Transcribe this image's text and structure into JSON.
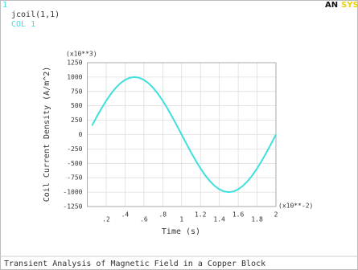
{
  "window_number": "1",
  "logo": [
    "AN",
    "SYS"
  ],
  "chart_data": {
    "type": "line",
    "plot_label": "jcoil(1,1)",
    "title": "Transient Analysis of Magnetic Field in a Copper Block",
    "x_label": "Time (s)",
    "y_label": "Coil Current Density (A/m^2)",
    "x_multiplier": "(x10**-2)",
    "y_multiplier": "(x10**3)",
    "xlim": [
      0,
      2
    ],
    "ylim": [
      -1250,
      1250
    ],
    "xticks": [
      {
        "value": 0.2,
        "label": ".2"
      },
      {
        "value": 0.4,
        "label": ".4"
      },
      {
        "value": 0.6,
        "label": ".6"
      },
      {
        "value": 0.8,
        "label": ".8"
      },
      1,
      1.2,
      1.4,
      1.6,
      1.8,
      2
    ],
    "yticks": [
      -1250,
      -1000,
      -750,
      -500,
      -250,
      0,
      250,
      500,
      750,
      1000,
      1250
    ],
    "grid": true,
    "x": [
      0.05,
      0.1,
      0.15,
      0.2,
      0.25,
      0.3,
      0.35,
      0.4,
      0.45,
      0.5,
      0.55,
      0.6,
      0.65,
      0.7,
      0.75,
      0.8,
      0.85,
      0.9,
      0.95,
      1.0,
      1.05,
      1.1,
      1.15,
      1.2,
      1.25,
      1.3,
      1.35,
      1.4,
      1.45,
      1.5,
      1.55,
      1.6,
      1.65,
      1.7,
      1.75,
      1.8,
      1.85,
      1.9,
      1.95,
      2.0
    ],
    "series": [
      {
        "name": "COL 1",
        "color": "#3fe0dc",
        "values": [
          156,
          309,
          454,
          588,
          707,
          809,
          891,
          951,
          988,
          1000,
          988,
          951,
          891,
          809,
          707,
          588,
          454,
          309,
          156,
          0,
          -156,
          -309,
          -454,
          -588,
          -707,
          -809,
          -891,
          -951,
          -988,
          -1000,
          -988,
          -951,
          -891,
          -809,
          -707,
          -588,
          -454,
          -309,
          -156,
          0
        ]
      }
    ]
  }
}
